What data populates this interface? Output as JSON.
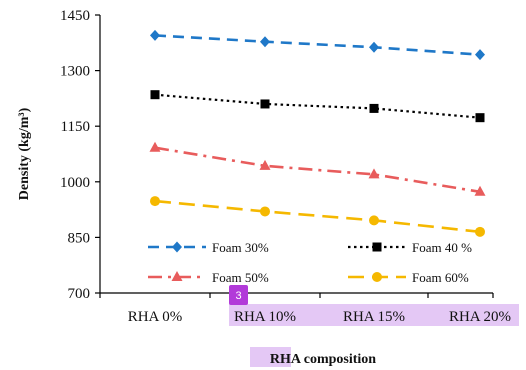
{
  "chart_data": {
    "type": "line",
    "categories": [
      "RHA 0%",
      "RHA 10%",
      "RHA 15%",
      "RHA 20%"
    ],
    "series": [
      {
        "name": "Foam 30%",
        "values": [
          1395,
          1378,
          1363,
          1343
        ],
        "color": "#1f78c8",
        "dash": "dash",
        "marker": "diamond"
      },
      {
        "name": "Foam 40 %",
        "values": [
          1235,
          1210,
          1198,
          1173
        ],
        "color": "#000000",
        "dash": "dot",
        "marker": "square"
      },
      {
        "name": "Foam 50%",
        "values": [
          1092,
          1043,
          1020,
          973
        ],
        "color": "#e85c5c",
        "dash": "dashdot",
        "marker": "triangle"
      },
      {
        "name": "Foam 60%",
        "values": [
          948,
          920,
          896,
          865
        ],
        "color": "#f5b800",
        "dash": "longdash",
        "marker": "circle"
      }
    ],
    "ylabel": "Density (kg/m³)",
    "xlabel_highlight": "RHA",
    "xlabel_rest": " composition",
    "ylim": [
      700,
      1450
    ],
    "yticks": [
      700,
      850,
      1000,
      1150,
      1300,
      1450
    ],
    "grid": false,
    "legend": "bottom-inside",
    "badge": "3",
    "badge_color": "#b23ad9",
    "highlight_color": "#e4c8f5"
  }
}
